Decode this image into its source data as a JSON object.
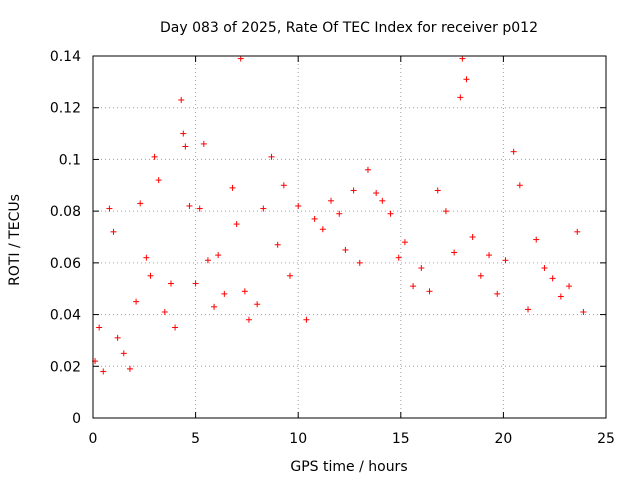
{
  "chart_data": {
    "type": "scatter",
    "title": "Day 083 of 2025, Rate Of TEC Index for receiver p012",
    "xlabel": "GPS time / hours",
    "ylabel": "ROTI / TECUs",
    "xlim": [
      0,
      25
    ],
    "ylim": [
      0,
      0.14
    ],
    "xticks": [
      0,
      5,
      10,
      15,
      20,
      25
    ],
    "yticks": [
      0,
      0.02,
      0.04,
      0.06,
      0.08,
      0.1,
      0.12,
      0.14
    ],
    "xtick_labels": [
      "0",
      "5",
      "10",
      "15",
      "20",
      "25"
    ],
    "ytick_labels": [
      "0",
      "0.02",
      "0.04",
      "0.06",
      "0.08",
      "0.1",
      "0.12",
      "0.14"
    ],
    "grid": true,
    "marker": "+",
    "color": "#ff0000",
    "series": [
      {
        "name": "ROTI",
        "x": [
          0.1,
          0.3,
          0.5,
          0.8,
          1.0,
          1.2,
          1.5,
          1.8,
          2.1,
          2.3,
          2.6,
          2.8,
          3.0,
          3.2,
          3.5,
          3.8,
          4.0,
          4.3,
          4.4,
          4.5,
          4.7,
          5.0,
          5.2,
          5.4,
          5.6,
          5.9,
          6.1,
          6.4,
          6.8,
          7.0,
          7.2,
          7.4,
          7.6,
          8.0,
          8.3,
          8.7,
          9.0,
          9.3,
          9.6,
          10.0,
          10.4,
          10.8,
          11.2,
          11.6,
          12.0,
          12.3,
          12.7,
          13.0,
          13.4,
          13.8,
          14.1,
          14.5,
          14.9,
          15.2,
          15.6,
          16.0,
          16.4,
          16.8,
          17.2,
          17.6,
          17.9,
          18.0,
          18.2,
          18.5,
          18.9,
          19.3,
          19.7,
          20.1,
          20.5,
          20.8,
          21.2,
          21.6,
          22.0,
          22.4,
          22.8,
          23.2,
          23.6,
          23.9
        ],
        "y": [
          0.022,
          0.035,
          0.018,
          0.081,
          0.072,
          0.031,
          0.025,
          0.019,
          0.045,
          0.083,
          0.062,
          0.055,
          0.101,
          0.092,
          0.041,
          0.052,
          0.035,
          0.123,
          0.11,
          0.105,
          0.082,
          0.052,
          0.081,
          0.106,
          0.061,
          0.043,
          0.063,
          0.048,
          0.089,
          0.075,
          0.139,
          0.049,
          0.038,
          0.044,
          0.081,
          0.101,
          0.067,
          0.09,
          0.055,
          0.082,
          0.038,
          0.077,
          0.073,
          0.084,
          0.079,
          0.065,
          0.088,
          0.06,
          0.096,
          0.087,
          0.084,
          0.079,
          0.062,
          0.068,
          0.051,
          0.058,
          0.049,
          0.088,
          0.08,
          0.064,
          0.124,
          0.139,
          0.131,
          0.07,
          0.055,
          0.063,
          0.048,
          0.061,
          0.103,
          0.09,
          0.042,
          0.069,
          0.058,
          0.054,
          0.047,
          0.051,
          0.072,
          0.041
        ]
      }
    ]
  }
}
